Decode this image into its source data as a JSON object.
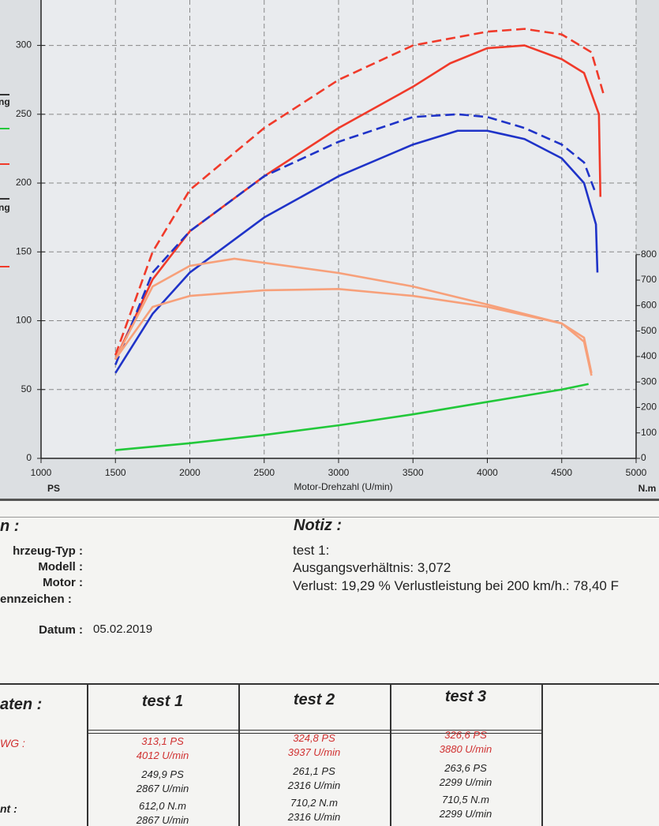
{
  "chart_data": {
    "type": "line",
    "xlim": [
      1000,
      5000
    ],
    "xticks": [
      1000,
      1500,
      2000,
      2500,
      3000,
      3500,
      4000,
      4500,
      5000
    ],
    "ylim": [
      0,
      333
    ],
    "yticks": [
      0,
      50,
      100,
      150,
      200,
      250,
      300
    ],
    "y2lim": [
      0,
      1800
    ],
    "y2ticks": [
      0,
      100,
      200,
      300,
      400,
      500,
      600,
      700,
      800
    ],
    "y_label": "PS",
    "y2_label": "N.m",
    "x_label": "Motor-Drehzahl (U/min)",
    "grid": true,
    "legend_fragments": [
      "ng",
      "ng"
    ],
    "series": [
      {
        "color": "#f03a2a",
        "dashed": false,
        "x": [
          1500,
          1750,
          2000,
          2500,
          3000,
          3500,
          3750,
          4000,
          4250,
          4500,
          4650,
          4750,
          4760
        ],
        "values": [
          72,
          130,
          165,
          205,
          240,
          270,
          287,
          298,
          300,
          290,
          280,
          250,
          190
        ]
      },
      {
        "color": "#f03a2a",
        "dashed": true,
        "x": [
          1500,
          1750,
          2000,
          2500,
          3000,
          3500,
          4000,
          4250,
          4500,
          4700,
          4780
        ],
        "values": [
          75,
          150,
          195,
          240,
          275,
          300,
          310,
          312,
          308,
          295,
          265
        ]
      },
      {
        "color": "#1f33c8",
        "dashed": false,
        "x": [
          1500,
          1750,
          2000,
          2500,
          3000,
          3500,
          3800,
          4000,
          4250,
          4500,
          4650,
          4730,
          4740
        ],
        "values": [
          62,
          105,
          135,
          175,
          205,
          228,
          238,
          238,
          232,
          218,
          200,
          170,
          135
        ]
      },
      {
        "color": "#1f33c8",
        "dashed": true,
        "x": [
          1500,
          1750,
          2000,
          2500,
          3000,
          3500,
          3800,
          4000,
          4250,
          4500,
          4650,
          4720
        ],
        "values": [
          68,
          135,
          165,
          205,
          230,
          248,
          250,
          248,
          240,
          228,
          215,
          195
        ]
      },
      {
        "color": "#f7a07a",
        "dashed": false,
        "axis": "y2",
        "x": [
          1500,
          1750,
          2000,
          2300,
          3000,
          3500,
          4000,
          4500,
          4650,
          4700
        ],
        "values": [
          390,
          675,
          756,
          784,
          728,
          675,
          604,
          530,
          458,
          325
        ]
      },
      {
        "color": "#f7a07a",
        "dashed": false,
        "axis": "y2",
        "x": [
          1500,
          1750,
          2000,
          2500,
          3000,
          3500,
          4000,
          4500,
          4650,
          4700
        ],
        "values": [
          390,
          595,
          638,
          660,
          665,
          638,
          595,
          530,
          474,
          335
        ]
      },
      {
        "color": "#22c83a",
        "dashed": false,
        "x": [
          1500,
          2000,
          2500,
          3000,
          3500,
          4000,
          4500,
          4680
        ],
        "values": [
          6,
          11,
          17,
          24,
          32,
          41,
          50,
          54
        ]
      }
    ]
  },
  "info": {
    "heading": "n :",
    "fields": [
      "hrzeug-Typ :",
      "Modell :",
      "Motor :",
      "ennzeichen :"
    ],
    "date_label": "Datum :",
    "date": "05.02.2019"
  },
  "notes": {
    "heading": "Notiz :",
    "lines": [
      "test 1:",
      "Ausgangsverhältnis: 3,072",
      "Verlust: 19,29 %  Verlustleistung bei 200 km/h.: 78,40 F"
    ]
  },
  "table": {
    "header": [
      "aten :",
      "test 1",
      "test 2",
      "test 3"
    ],
    "rows": [
      {
        "label": "WG :",
        "cells": [
          [
            "313,1 PS",
            "4012 U/min",
            "249,9 PS",
            "2867 U/min"
          ],
          [
            "324,8 PS",
            "3937 U/min",
            "261,1 PS",
            "2316 U/min"
          ],
          [
            "326,6 PS",
            "3880 U/min",
            "263,6 PS",
            "2299 U/min"
          ]
        ]
      },
      {
        "label": "nt :",
        "cells": [
          [
            "612,0 N.m",
            "2867 U/min"
          ],
          [
            "710,2 N.m",
            "2316 U/min"
          ],
          [
            "710,5 N.m",
            "2299 U/min"
          ]
        ]
      }
    ]
  }
}
